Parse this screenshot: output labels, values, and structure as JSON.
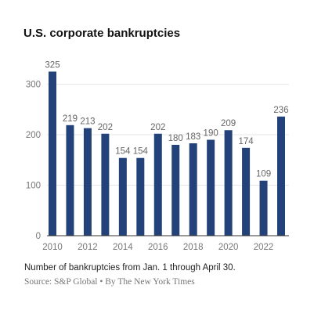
{
  "chart_data": {
    "type": "bar",
    "title": "U.S. corporate bankruptcies",
    "categories": [
      "2010",
      "2011",
      "2012",
      "2013",
      "2014",
      "2015",
      "2016",
      "2017",
      "2018",
      "2019",
      "2020",
      "2021",
      "2022",
      "2023"
    ],
    "values": [
      325,
      219,
      213,
      202,
      154,
      154,
      202,
      180,
      183,
      190,
      209,
      174,
      109,
      236
    ],
    "x_tick_labels": [
      "2010",
      "2012",
      "2014",
      "2016",
      "2018",
      "2020",
      "2022"
    ],
    "y_ticks": [
      0,
      100,
      200,
      300
    ],
    "ylim": [
      0,
      335
    ],
    "xlabel": "",
    "ylabel": "",
    "grid": true,
    "bar_color": "#24427a",
    "note": "Number of bankruptcies from Jan. 1 through April 30.",
    "source": "Source: S&P Global • By The New York Times"
  }
}
